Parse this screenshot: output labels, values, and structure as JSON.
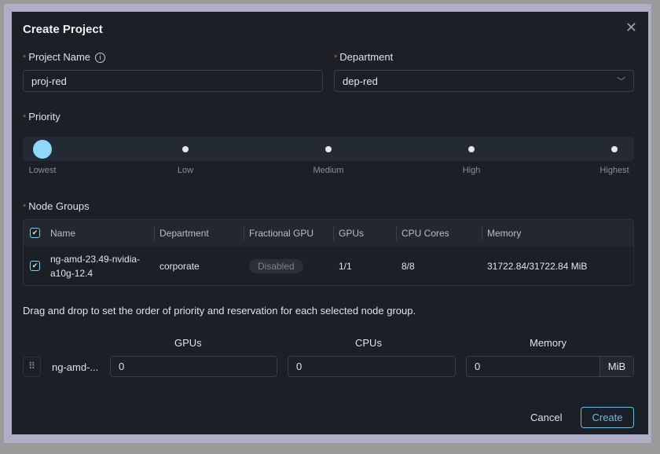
{
  "dialog": {
    "title": "Create Project",
    "close_icon": "close-icon"
  },
  "project_name": {
    "label": "Project Name",
    "value": "proj-red",
    "info_icon": "info-icon"
  },
  "department": {
    "label": "Department",
    "value": "dep-red"
  },
  "priority": {
    "label": "Priority",
    "options": [
      "Lowest",
      "Low",
      "Medium",
      "High",
      "Highest"
    ],
    "selected": "Lowest",
    "accent": "#8dd8fb"
  },
  "node_groups": {
    "label": "Node Groups",
    "columns": [
      "Name",
      "Department",
      "Fractional GPU",
      "GPUs",
      "CPU Cores",
      "Memory"
    ],
    "header_checked": true,
    "rows": [
      {
        "checked": true,
        "name_line1": "ng-amd-23.49-nvidia-",
        "name_line2": "a10g-12.4",
        "department": "corporate",
        "fractional_gpu": "Disabled",
        "gpus": "1/1",
        "cpu_cores": "8/8",
        "memory": "31722.84/31722.84 MiB"
      }
    ]
  },
  "reservation": {
    "hint": "Drag and drop to set the order of priority and reservation for each selected node group.",
    "gpus_label": "GPUs",
    "cpus_label": "CPUs",
    "memory_label": "Memory",
    "row": {
      "name": "ng-amd-...",
      "gpus": "0",
      "cpus": "0",
      "memory": "0",
      "memory_unit": "MiB"
    }
  },
  "footer": {
    "cancel": "Cancel",
    "create": "Create",
    "create_color": "#6cb8e6"
  }
}
